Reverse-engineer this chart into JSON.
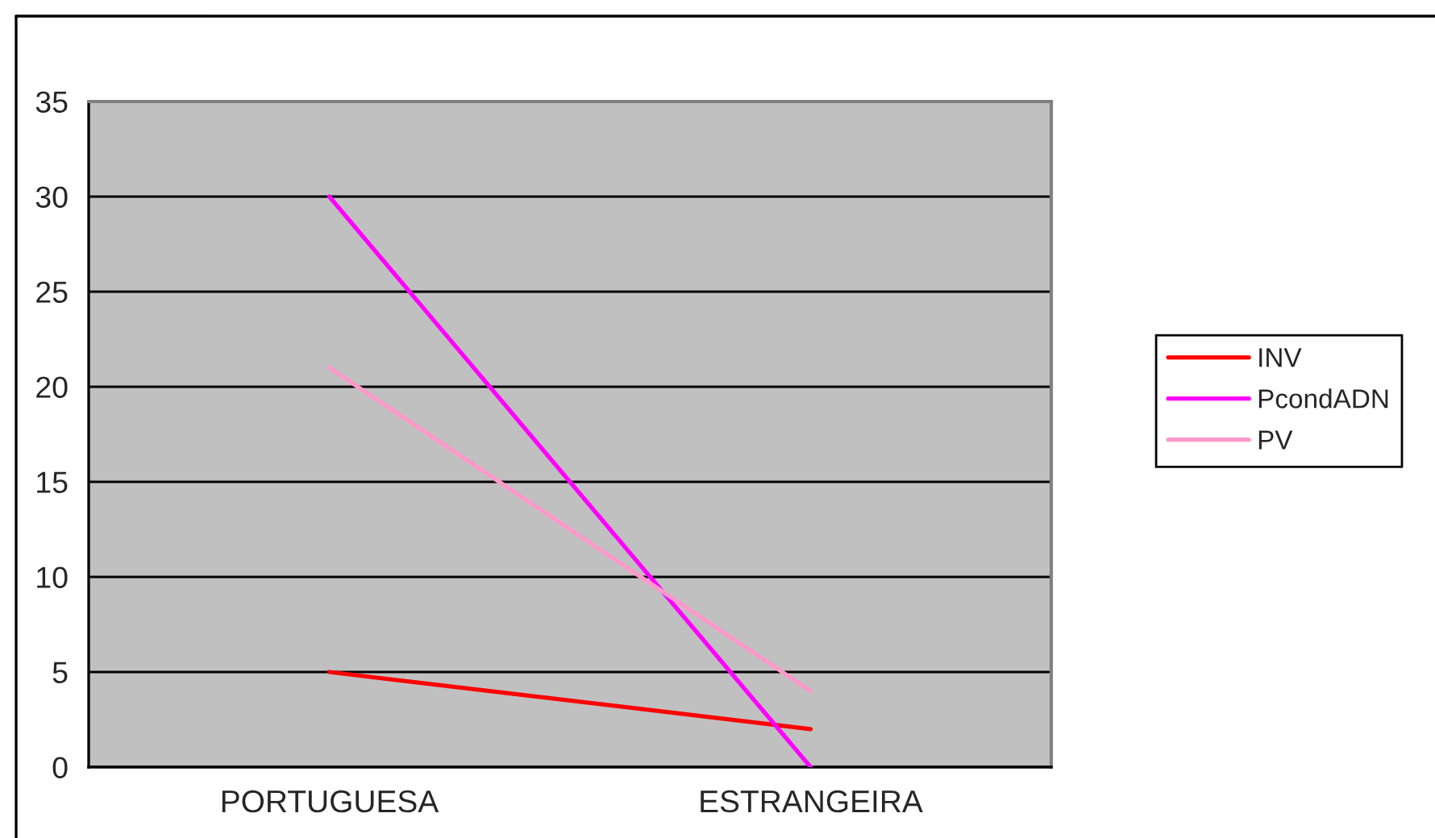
{
  "chart_data": {
    "type": "line",
    "categories": [
      "PORTUGUESA",
      "ESTRANGEIRA"
    ],
    "series": [
      {
        "name": "INV",
        "color": "#ff0000",
        "values": [
          5,
          2
        ]
      },
      {
        "name": "PcondADN",
        "color": "#ff00ff",
        "values": [
          30,
          0
        ]
      },
      {
        "name": "PV",
        "color": "#ff99cc",
        "values": [
          21,
          4
        ]
      }
    ],
    "ylim": [
      0,
      35
    ],
    "yticks": [
      0,
      5,
      10,
      15,
      20,
      25,
      30,
      35
    ],
    "grid": "y",
    "legend": "right",
    "marker": "none",
    "line_style": "solid"
  }
}
